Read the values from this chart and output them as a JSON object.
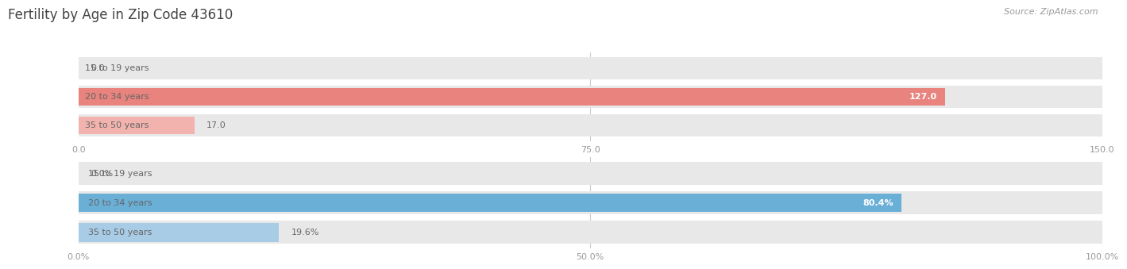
{
  "title": "Fertility by Age in Zip Code 43610",
  "source": "Source: ZipAtlas.com",
  "top_chart": {
    "categories": [
      "15 to 19 years",
      "20 to 34 years",
      "35 to 50 years"
    ],
    "values": [
      0.0,
      127.0,
      17.0
    ],
    "xlim": [
      0,
      150
    ],
    "xticks": [
      0.0,
      75.0,
      150.0
    ],
    "bar_color_strong": "#e8837e",
    "bar_color_light": "#f2b3ae",
    "value_labels": [
      "0.0",
      "127.0",
      "17.0"
    ],
    "value_label_inside": [
      false,
      true,
      false
    ]
  },
  "bottom_chart": {
    "categories": [
      "15 to 19 years",
      "20 to 34 years",
      "35 to 50 years"
    ],
    "values": [
      0.0,
      80.4,
      19.6
    ],
    "xlim": [
      0,
      100
    ],
    "xticks": [
      0.0,
      50.0,
      100.0
    ],
    "xtick_labels": [
      "0.0%",
      "50.0%",
      "100.0%"
    ],
    "bar_color_strong": "#6aafd6",
    "bar_color_light": "#a8cce6",
    "value_labels": [
      "0.0%",
      "80.4%",
      "19.6%"
    ],
    "value_label_inside": [
      false,
      true,
      false
    ]
  },
  "label_color": "#666666",
  "label_bg_color": "#ffffff",
  "bg_bar_color": "#e8e8e8",
  "title_color": "#444444",
  "title_fontsize": 12,
  "label_fontsize": 8,
  "value_fontsize": 8,
  "tick_fontsize": 8,
  "source_fontsize": 8
}
